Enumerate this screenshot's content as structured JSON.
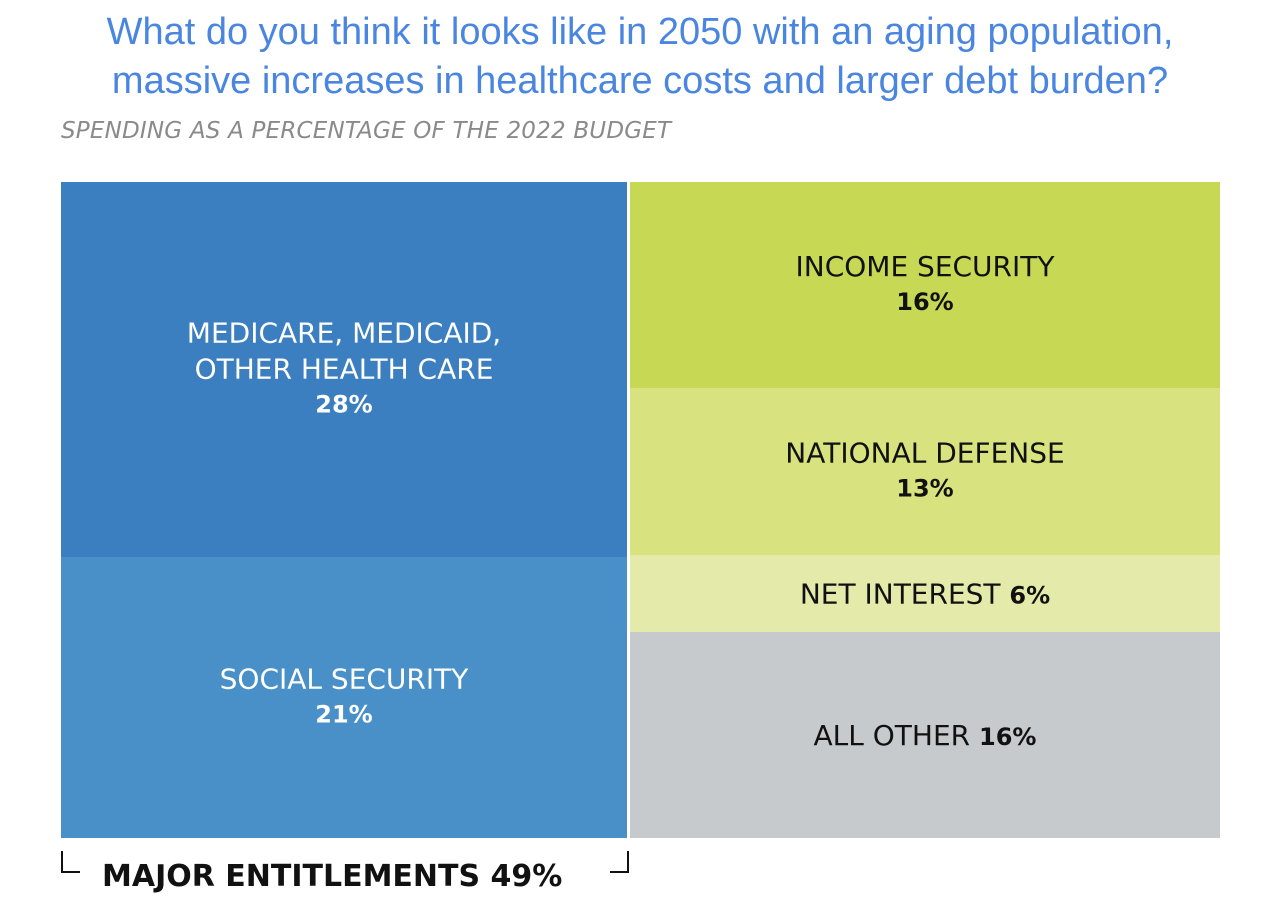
{
  "header": {
    "line1": "What do you think it looks like in 2050 with an aging population,",
    "line2": "massive increases in healthcare costs and larger debt burden?",
    "color": "#4a86e0"
  },
  "chart_data": {
    "type": "treemap",
    "subtitle": "SPENDING AS A PERCENTAGE OF THE 2022 BUDGET",
    "unit": "%",
    "categories": [
      {
        "label_lines": [
          "MEDICARE, MEDICAID,",
          "OTHER HEALTH CARE"
        ],
        "value": 28,
        "value_text": "28%",
        "color": "#3b7fc0",
        "text_color": "#ffffff",
        "inline": false
      },
      {
        "label_lines": [
          "SOCIAL SECURITY"
        ],
        "value": 21,
        "value_text": "21%",
        "color": "#4a90c8",
        "text_color": "#ffffff",
        "inline": false
      },
      {
        "label_lines": [
          "INCOME SECURITY"
        ],
        "value": 16,
        "value_text": "16%",
        "color": "#c7d854",
        "text_color": "#111111",
        "inline": false
      },
      {
        "label_lines": [
          "NATIONAL DEFENSE"
        ],
        "value": 13,
        "value_text": "13%",
        "color": "#d8e27f",
        "text_color": "#111111",
        "inline": false
      },
      {
        "label_lines": [
          "NET INTEREST"
        ],
        "value": 6,
        "value_text": "6%",
        "color": "#e4eaa9",
        "text_color": "#111111",
        "inline": true
      },
      {
        "label_lines": [
          "ALL OTHER"
        ],
        "value": 16,
        "value_text": "16%",
        "color": "#c7cacd",
        "text_color": "#111111",
        "inline": true
      }
    ],
    "groups": [
      {
        "label": "MAJOR ENTITLEMENTS 49%",
        "value": 49,
        "members": [
          "MEDICARE, MEDICAID, OTHER HEALTH CARE",
          "SOCIAL SECURITY"
        ]
      }
    ]
  }
}
